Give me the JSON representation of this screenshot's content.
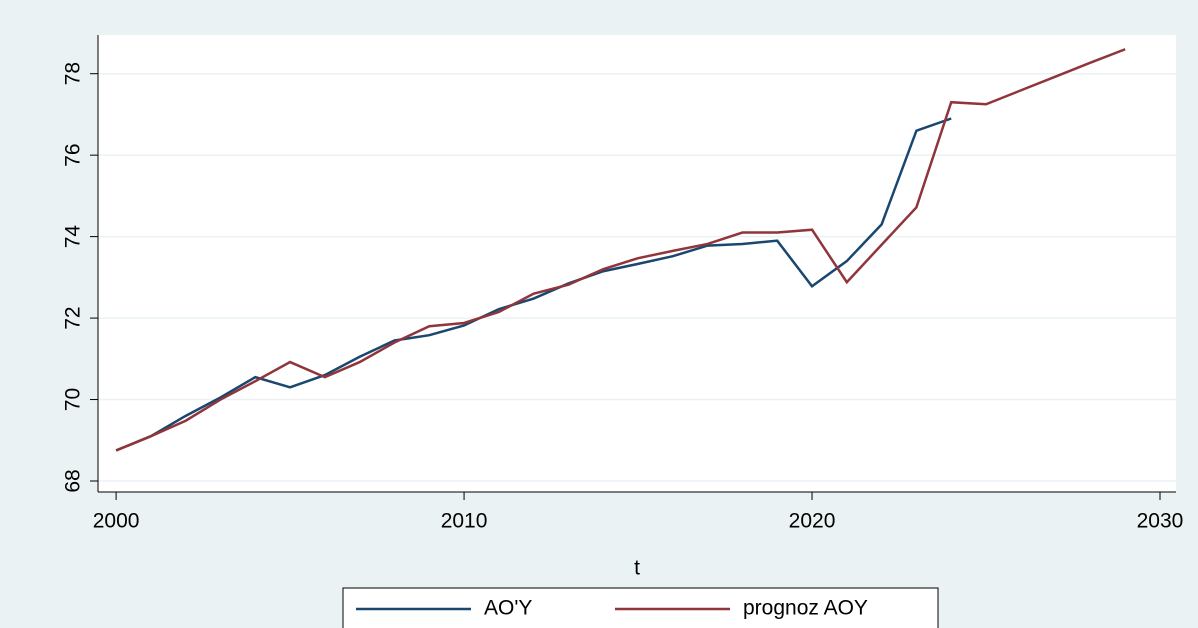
{
  "chart_data": {
    "type": "line",
    "x_label": "t",
    "x": [
      2000,
      2001,
      2002,
      2003,
      2004,
      2005,
      2006,
      2007,
      2008,
      2009,
      2010,
      2011,
      2012,
      2013,
      2014,
      2015,
      2016,
      2017,
      2018,
      2019,
      2020,
      2021,
      2022,
      2023,
      2024,
      2025,
      2026,
      2027,
      2028,
      2029
    ],
    "series": [
      {
        "name": "AO'Y",
        "color": "#1a476f",
        "values": [
          68.75,
          69.1,
          69.6,
          70.05,
          70.55,
          70.3,
          70.6,
          71.05,
          71.45,
          71.58,
          71.82,
          72.22,
          72.48,
          72.85,
          73.15,
          73.33,
          73.52,
          73.78,
          73.82,
          73.9,
          72.78,
          73.4,
          74.3,
          76.6,
          76.9,
          null,
          null,
          null,
          null,
          null
        ]
      },
      {
        "name": "prognoz AOY",
        "color": "#90353b",
        "values": [
          68.75,
          69.1,
          69.48,
          70.0,
          70.45,
          70.92,
          70.55,
          70.92,
          71.4,
          71.8,
          71.88,
          72.15,
          72.6,
          72.82,
          73.2,
          73.47,
          73.65,
          73.82,
          74.1,
          74.1,
          74.17,
          72.88,
          73.8,
          74.72,
          77.3,
          77.25,
          77.59,
          77.93,
          78.27,
          78.6
        ]
      }
    ],
    "xlim": [
      1999.48,
      2030.46
    ],
    "xticks": [
      2000,
      2010,
      2020,
      2030
    ],
    "ylim": [
      67.73,
      78.95
    ],
    "yticks": [
      68,
      70,
      72,
      74,
      76,
      78
    ],
    "grid": true,
    "legend": "bottom"
  }
}
